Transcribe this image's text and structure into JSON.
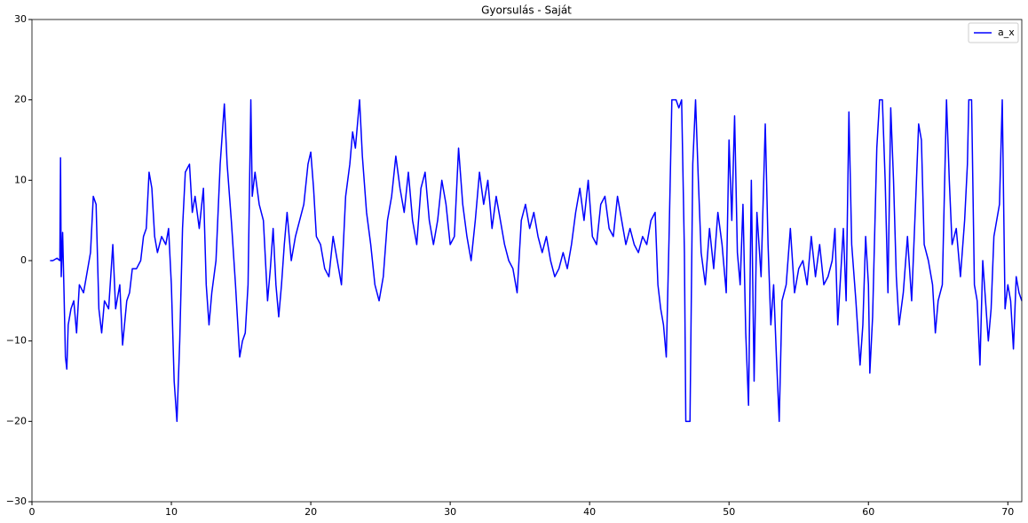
{
  "chart_data": {
    "type": "line",
    "title": "Gyorsulás - Saját",
    "x": [
      1.3,
      1.5,
      1.8,
      2.0,
      2.05,
      2.1,
      2.2,
      2.3,
      2.4,
      2.5,
      2.6,
      2.8,
      3.0,
      3.2,
      3.4,
      3.7,
      4.0,
      4.2,
      4.4,
      4.6,
      4.8,
      5.0,
      5.2,
      5.5,
      5.8,
      6.0,
      6.3,
      6.5,
      6.8,
      7.0,
      7.2,
      7.5,
      7.8,
      8.0,
      8.2,
      8.4,
      8.6,
      8.8,
      9.0,
      9.3,
      9.6,
      9.8,
      10.0,
      10.2,
      10.4,
      10.6,
      10.8,
      11.0,
      11.3,
      11.5,
      11.7,
      12.0,
      12.3,
      12.5,
      12.7,
      12.9,
      13.2,
      13.5,
      13.8,
      14.0,
      14.3,
      14.6,
      14.9,
      15.1,
      15.3,
      15.5,
      15.7,
      15.8,
      16.0,
      16.3,
      16.6,
      16.9,
      17.1,
      17.3,
      17.5,
      17.7,
      17.9,
      18.1,
      18.3,
      18.6,
      18.9,
      19.2,
      19.5,
      19.8,
      20.0,
      20.2,
      20.4,
      20.7,
      21.0,
      21.3,
      21.6,
      21.9,
      22.2,
      22.5,
      22.8,
      23.0,
      23.2,
      23.5,
      23.7,
      24.0,
      24.3,
      24.6,
      24.9,
      25.2,
      25.5,
      25.8,
      26.1,
      26.4,
      26.7,
      27.0,
      27.3,
      27.6,
      27.9,
      28.2,
      28.5,
      28.8,
      29.1,
      29.4,
      29.7,
      30.0,
      30.3,
      30.6,
      30.9,
      31.2,
      31.5,
      31.8,
      32.1,
      32.4,
      32.7,
      33.0,
      33.3,
      33.6,
      33.9,
      34.2,
      34.5,
      34.8,
      35.1,
      35.4,
      35.7,
      36.0,
      36.3,
      36.6,
      36.9,
      37.2,
      37.5,
      37.8,
      38.1,
      38.4,
      38.7,
      39.0,
      39.3,
      39.6,
      39.9,
      40.2,
      40.5,
      40.8,
      41.1,
      41.4,
      41.7,
      42.0,
      42.3,
      42.6,
      42.9,
      43.2,
      43.5,
      43.8,
      44.1,
      44.4,
      44.7,
      44.9,
      45.1,
      45.3,
      45.5,
      45.7,
      45.9,
      46.2,
      46.4,
      46.6,
      46.8,
      46.9,
      47.2,
      47.4,
      47.6,
      47.8,
      48.0,
      48.3,
      48.6,
      48.9,
      49.2,
      49.5,
      49.8,
      50.0,
      50.2,
      50.4,
      50.6,
      50.8,
      51.0,
      51.2,
      51.4,
      51.6,
      51.8,
      52.0,
      52.3,
      52.6,
      52.8,
      53.0,
      53.2,
      53.4,
      53.6,
      53.8,
      54.1,
      54.4,
      54.7,
      55.0,
      55.3,
      55.6,
      55.9,
      56.2,
      56.5,
      56.8,
      57.1,
      57.4,
      57.6,
      57.8,
      58.0,
      58.2,
      58.4,
      58.6,
      58.8,
      59.1,
      59.4,
      59.6,
      59.8,
      60.0,
      60.1,
      60.3,
      60.6,
      60.8,
      61.0,
      61.2,
      61.4,
      61.6,
      61.8,
      62.0,
      62.2,
      62.5,
      62.8,
      63.1,
      63.4,
      63.6,
      63.8,
      64.0,
      64.3,
      64.6,
      64.8,
      65.0,
      65.3,
      65.6,
      65.8,
      66.0,
      66.3,
      66.6,
      66.9,
      67.1,
      67.2,
      67.4,
      67.6,
      67.8,
      68.0,
      68.2,
      68.4,
      68.6,
      68.8,
      69.0,
      69.2,
      69.4,
      69.6,
      69.8,
      70.0,
      70.2,
      70.4,
      70.6,
      70.8,
      71.0
    ],
    "series": [
      {
        "name": "a_x",
        "color": "#0000ff",
        "values": [
          0,
          0,
          0.3,
          0,
          12.8,
          -2,
          3.5,
          -4,
          -12,
          -13.5,
          -8,
          -6,
          -5,
          -9,
          -3,
          -4,
          -1,
          1,
          8,
          7,
          -6,
          -9,
          -5,
          -6,
          2,
          -6,
          -3,
          -10.5,
          -5,
          -4,
          -1,
          -1,
          0,
          3,
          4,
          11,
          9,
          3,
          1,
          3,
          2,
          4,
          -3,
          -15,
          -20,
          -10,
          4,
          11,
          12,
          6,
          8,
          4,
          9,
          -3,
          -8,
          -4,
          0,
          12,
          19.5,
          12,
          5,
          -3,
          -12,
          -10,
          -9,
          -3,
          20,
          8,
          11,
          7,
          5,
          -5,
          -1,
          4,
          -3,
          -7,
          -3,
          2,
          6,
          0,
          3,
          5,
          7,
          12,
          13.5,
          9,
          3,
          2,
          -1,
          -2,
          3,
          0,
          -3,
          8,
          12,
          16,
          14,
          20,
          13,
          6,
          2,
          -3,
          -5,
          -2,
          5,
          8,
          13,
          9,
          6,
          11,
          5,
          2,
          9,
          11,
          5,
          2,
          5,
          10,
          7,
          2,
          3,
          14,
          7,
          3,
          0,
          5,
          11,
          7,
          10,
          4,
          8,
          5,
          2,
          0,
          -1,
          -4,
          5,
          7,
          4,
          6,
          3,
          1,
          3,
          0,
          -2,
          -1,
          1,
          -1,
          2,
          6,
          9,
          5,
          10,
          3,
          2,
          7,
          8,
          4,
          3,
          8,
          5,
          2,
          4,
          2,
          1,
          3,
          2,
          5,
          6,
          -3,
          -6,
          -8,
          -12,
          3,
          20,
          20,
          19,
          20,
          1,
          -20,
          -20,
          12,
          20,
          10,
          1,
          -3,
          4,
          -1,
          6,
          2,
          -4,
          15,
          5,
          18,
          1,
          -3,
          7,
          -9,
          -18,
          10,
          -15,
          6,
          -2,
          17,
          2,
          -8,
          -3,
          -12,
          -20,
          -5,
          -3,
          4,
          -4,
          -1,
          0,
          -3,
          3,
          -2,
          2,
          -3,
          -2,
          0,
          4,
          -8,
          -2,
          4,
          -5,
          18.5,
          2,
          -5,
          -13,
          -8,
          3,
          -3,
          -14,
          -7,
          14,
          20,
          20,
          10,
          -4,
          19,
          10,
          -2,
          -8,
          -4,
          3,
          -5,
          8,
          17,
          15,
          2,
          0,
          -3,
          -9,
          -5,
          -3,
          20,
          10,
          2,
          4,
          -2,
          5,
          12,
          20,
          20,
          -3,
          -5,
          -13,
          0,
          -5,
          -10,
          -6,
          3,
          5,
          7,
          20,
          -6,
          -3,
          -5,
          -11,
          -2,
          -4,
          -5
        ]
      }
    ],
    "xlim": [
      0,
      71
    ],
    "ylim": [
      -30,
      30
    ],
    "xticks": [
      0,
      10,
      20,
      30,
      40,
      50,
      60,
      70
    ],
    "yticks": [
      {
        "value": -30,
        "label": "−30"
      },
      {
        "value": -20,
        "label": "−20"
      },
      {
        "value": -10,
        "label": "−10"
      },
      0,
      10,
      20,
      30
    ],
    "grid": false,
    "legend": "upper right"
  }
}
